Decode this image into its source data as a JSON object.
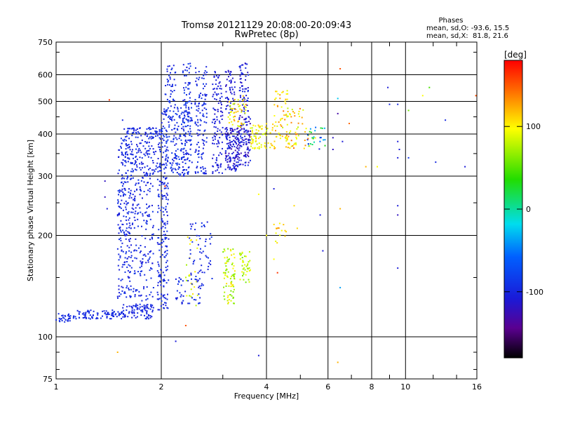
{
  "chart_data": {
    "type": "scatter",
    "title": "Tromsø 20121129 20:08:00-20:09:43",
    "subtitle": "RwPretec (8p)",
    "xlabel": "Frequency [MHz]",
    "ylabel": "Stationary phase Virtual Height [km]",
    "x_scale": "log",
    "y_scale": "log",
    "xlim": [
      1,
      16
    ],
    "ylim": [
      75,
      750
    ],
    "x_ticks": [
      1,
      2,
      4,
      6,
      8,
      10,
      16
    ],
    "y_ticks": [
      75,
      100,
      200,
      300,
      400,
      500,
      600,
      750
    ],
    "grid": true,
    "colorbar": {
      "label": "[deg]",
      "range": [
        -180,
        180
      ],
      "ticks": [
        100,
        0,
        -100
      ]
    },
    "stats": {
      "header": "Phases",
      "line_o": "mean, sd,O: -93.6, 15.5",
      "line_x": "mean, sd,X:  81.8, 21.6"
    },
    "series": [
      {
        "clusters": [
          {
            "f0": 1.0,
            "f1": 1.1,
            "h0": 110,
            "h1": 118,
            "p0": -100,
            "p1": -95,
            "n": 30
          },
          {
            "f0": 1.12,
            "f1": 1.55,
            "h0": 113,
            "h1": 120,
            "p0": -105,
            "p1": -95,
            "n": 90
          },
          {
            "f0": 1.55,
            "f1": 1.9,
            "h0": 113,
            "h1": 125,
            "p0": -110,
            "p1": -95,
            "n": 70
          },
          {
            "f0": 1.5,
            "f1": 1.65,
            "h0": 130,
            "h1": 390,
            "p0": -110,
            "p1": -90,
            "n": 220
          },
          {
            "f0": 1.65,
            "f1": 1.9,
            "h0": 120,
            "h1": 300,
            "p0": -110,
            "p1": -90,
            "n": 180
          },
          {
            "f0": 1.95,
            "f1": 2.1,
            "h0": 120,
            "h1": 300,
            "p0": -110,
            "p1": -90,
            "n": 160
          },
          {
            "f0": 1.55,
            "f1": 2.0,
            "h0": 300,
            "h1": 420,
            "p0": -110,
            "p1": -90,
            "n": 200
          },
          {
            "f0": 2.0,
            "f1": 2.45,
            "h0": 300,
            "h1": 480,
            "p0": -110,
            "p1": -85,
            "n": 240
          },
          {
            "f0": 2.05,
            "f1": 2.2,
            "h0": 480,
            "h1": 640,
            "p0": -110,
            "p1": -90,
            "n": 40
          },
          {
            "f0": 2.3,
            "f1": 2.45,
            "h0": 420,
            "h1": 650,
            "p0": -110,
            "p1": -80,
            "n": 70
          },
          {
            "f0": 2.5,
            "f1": 2.7,
            "h0": 300,
            "h1": 640,
            "p0": -110,
            "p1": -90,
            "n": 120
          },
          {
            "f0": 2.8,
            "f1": 3.0,
            "h0": 305,
            "h1": 620,
            "p0": -115,
            "p1": -100,
            "n": 110
          },
          {
            "f0": 3.05,
            "f1": 3.3,
            "h0": 310,
            "h1": 420,
            "p0": -130,
            "p1": -95,
            "n": 120
          },
          {
            "f0": 3.3,
            "f1": 3.6,
            "h0": 320,
            "h1": 460,
            "p0": -130,
            "p1": -95,
            "n": 130
          },
          {
            "f0": 3.35,
            "f1": 3.55,
            "h0": 460,
            "h1": 650,
            "p0": -120,
            "p1": -95,
            "n": 60
          },
          {
            "f0": 3.05,
            "f1": 3.25,
            "h0": 460,
            "h1": 620,
            "p0": -120,
            "p1": -100,
            "n": 50
          },
          {
            "f0": 2.35,
            "f1": 2.55,
            "h0": 120,
            "h1": 200,
            "p0": 70,
            "p1": 110,
            "n": 25
          },
          {
            "f0": 2.4,
            "f1": 2.8,
            "h0": 140,
            "h1": 220,
            "p0": -110,
            "p1": -90,
            "n": 60
          },
          {
            "f0": 2.2,
            "f1": 2.6,
            "h0": 125,
            "h1": 150,
            "p0": -110,
            "p1": -90,
            "n": 40
          },
          {
            "f0": 3.0,
            "f1": 3.25,
            "h0": 125,
            "h1": 185,
            "p0": 60,
            "p1": 110,
            "n": 80
          },
          {
            "f0": 3.35,
            "f1": 3.6,
            "h0": 145,
            "h1": 180,
            "p0": 60,
            "p1": 100,
            "n": 40
          },
          {
            "f0": 3.1,
            "f1": 3.5,
            "h0": 420,
            "h1": 520,
            "p0": 80,
            "p1": 130,
            "n": 50
          },
          {
            "f0": 3.6,
            "f1": 4.2,
            "h0": 360,
            "h1": 430,
            "p0": 80,
            "p1": 120,
            "n": 70
          },
          {
            "f0": 4.2,
            "f1": 5.2,
            "h0": 360,
            "h1": 480,
            "p0": 80,
            "p1": 140,
            "n": 90
          },
          {
            "f0": 4.2,
            "f1": 4.6,
            "h0": 480,
            "h1": 540,
            "p0": 90,
            "p1": 130,
            "n": 20
          },
          {
            "f0": 5.2,
            "f1": 5.9,
            "h0": 360,
            "h1": 420,
            "p0": -110,
            "p1": 140,
            "n": 30
          },
          {
            "f0": 4.2,
            "f1": 4.6,
            "h0": 190,
            "h1": 220,
            "p0": 90,
            "p1": 130,
            "n": 15
          }
        ]
      }
    ],
    "points": [
      {
        "x": 1.42,
        "y": 505,
        "p": 160
      },
      {
        "x": 1.55,
        "y": 440,
        "p": -100
      },
      {
        "x": 1.38,
        "y": 290,
        "p": -120
      },
      {
        "x": 1.38,
        "y": 260,
        "p": -120
      },
      {
        "x": 1.4,
        "y": 240,
        "p": -110
      },
      {
        "x": 1.62,
        "y": 150,
        "p": -110
      },
      {
        "x": 1.5,
        "y": 90,
        "p": 120
      },
      {
        "x": 2.2,
        "y": 97,
        "p": -110
      },
      {
        "x": 2.05,
        "y": 280,
        "p": 170
      },
      {
        "x": 2.35,
        "y": 108,
        "p": 150
      },
      {
        "x": 3.8,
        "y": 88,
        "p": -110
      },
      {
        "x": 6.4,
        "y": 84,
        "p": 120
      },
      {
        "x": 6.5,
        "y": 625,
        "p": 150
      },
      {
        "x": 6.4,
        "y": 510,
        "p": -10
      },
      {
        "x": 6.4,
        "y": 460,
        "p": -130
      },
      {
        "x": 6.9,
        "y": 430,
        "p": 140
      },
      {
        "x": 6.5,
        "y": 240,
        "p": 120
      },
      {
        "x": 6.5,
        "y": 140,
        "p": -30
      },
      {
        "x": 6.2,
        "y": 390,
        "p": -120
      },
      {
        "x": 6.2,
        "y": 360,
        "p": -120
      },
      {
        "x": 6.6,
        "y": 380,
        "p": -110
      },
      {
        "x": 5.7,
        "y": 230,
        "p": -110
      },
      {
        "x": 5.8,
        "y": 180,
        "p": -110
      },
      {
        "x": 4.8,
        "y": 245,
        "p": 110
      },
      {
        "x": 4.9,
        "y": 210,
        "p": 110
      },
      {
        "x": 4.2,
        "y": 170,
        "p": 100
      },
      {
        "x": 4.3,
        "y": 155,
        "p": 160
      },
      {
        "x": 4.2,
        "y": 275,
        "p": -110
      },
      {
        "x": 3.8,
        "y": 265,
        "p": 100
      },
      {
        "x": 4.0,
        "y": 200,
        "p": 100
      },
      {
        "x": 7.7,
        "y": 320,
        "p": 120
      },
      {
        "x": 8.3,
        "y": 320,
        "p": 100
      },
      {
        "x": 8.9,
        "y": 550,
        "p": -110
      },
      {
        "x": 9.0,
        "y": 490,
        "p": -100
      },
      {
        "x": 9.5,
        "y": 490,
        "p": -100
      },
      {
        "x": 9.5,
        "y": 380,
        "p": -110
      },
      {
        "x": 9.6,
        "y": 360,
        "p": -110
      },
      {
        "x": 9.5,
        "y": 340,
        "p": -110
      },
      {
        "x": 9.5,
        "y": 245,
        "p": -110
      },
      {
        "x": 9.5,
        "y": 230,
        "p": -120
      },
      {
        "x": 9.5,
        "y": 160,
        "p": -110
      },
      {
        "x": 10.2,
        "y": 470,
        "p": 60
      },
      {
        "x": 10.2,
        "y": 340,
        "p": -90
      },
      {
        "x": 11.2,
        "y": 520,
        "p": 100
      },
      {
        "x": 11.7,
        "y": 550,
        "p": 50
      },
      {
        "x": 12.2,
        "y": 330,
        "p": -100
      },
      {
        "x": 13.0,
        "y": 440,
        "p": -100
      },
      {
        "x": 14.8,
        "y": 320,
        "p": -110
      },
      {
        "x": 15.9,
        "y": 520,
        "p": 150
      }
    ]
  }
}
